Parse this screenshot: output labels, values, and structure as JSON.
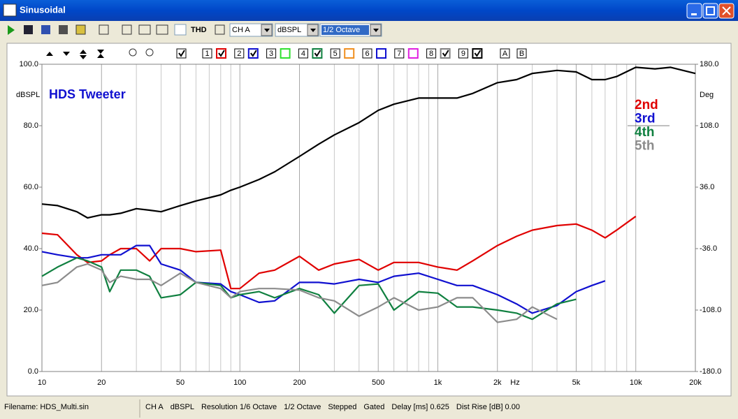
{
  "window": {
    "title": "Sinusoidal"
  },
  "toolbar": {
    "thd": "THD",
    "channel": "CH A",
    "unit": "dBSPL",
    "smoothing": "1/2 Octave",
    "series_toggles": [
      "1",
      "2",
      "3",
      "4",
      "5",
      "6",
      "7",
      "8",
      "9"
    ],
    "markers": [
      "A",
      "B"
    ]
  },
  "chart_data": {
    "type": "line",
    "x_scale": "log",
    "annotation": "HDS Tweeter",
    "ylabel": "dBSPL",
    "y2label": "Deg",
    "xunit": "Hz",
    "x": [
      10,
      12,
      15,
      17,
      20,
      22,
      25,
      30,
      35,
      40,
      50,
      60,
      80,
      90,
      100,
      125,
      150,
      200,
      250,
      300,
      400,
      500,
      600,
      800,
      1000,
      1250,
      1500,
      2000,
      2500,
      3000,
      4000,
      5000,
      6000,
      7000,
      8000,
      10000,
      12500,
      15000,
      20000
    ],
    "series": [
      {
        "name": null,
        "color": "#000000",
        "values": [
          54.5,
          54,
          52,
          50,
          51,
          51,
          51.5,
          53,
          52.5,
          52,
          54,
          55.5,
          57.5,
          59,
          60,
          62.5,
          65,
          70,
          74,
          77,
          81,
          85,
          87,
          89,
          89,
          89,
          90.5,
          94,
          95,
          97,
          98,
          97.5,
          95,
          95,
          96,
          99,
          98.5,
          99,
          97
        ]
      },
      {
        "name": "2nd",
        "color": "#e00000",
        "values": [
          45,
          44.5,
          38,
          35.5,
          36,
          38,
          40,
          40,
          36,
          40,
          40,
          39,
          39.5,
          27,
          27,
          32,
          33,
          37.5,
          33,
          35,
          36.5,
          33,
          35.5,
          35.5,
          34,
          33,
          36,
          41,
          44,
          46,
          47.5,
          48,
          46,
          43.5,
          46,
          50.5,
          null,
          null,
          null
        ]
      },
      {
        "name": "3rd",
        "color": "#1010d0",
        "values": [
          39,
          38,
          37,
          37,
          38,
          38,
          38,
          41,
          41,
          35,
          33,
          29,
          28.5,
          26,
          25,
          22.5,
          23,
          29,
          29,
          28.5,
          30,
          29,
          31,
          32,
          30,
          28,
          28,
          25,
          22,
          19,
          21.5,
          26,
          28,
          29.5,
          null,
          null,
          null,
          null,
          null
        ]
      },
      {
        "name": "4th",
        "color": "#108040",
        "values": [
          31,
          34,
          37,
          36,
          34,
          26,
          33,
          33,
          31,
          24,
          25,
          29,
          28,
          24,
          25,
          26,
          24,
          27,
          25,
          19,
          28,
          28.5,
          20,
          26,
          25.5,
          21,
          21,
          20,
          19,
          17,
          22,
          23.5,
          null,
          null,
          null,
          null,
          null,
          null,
          null
        ]
      },
      {
        "name": "5th",
        "color": "#8c8c8c",
        "values": [
          28,
          29,
          34,
          35,
          33,
          29,
          31,
          30,
          30,
          28,
          32,
          29,
          27,
          24,
          26,
          27,
          27,
          26.5,
          24,
          23,
          18,
          21,
          24,
          20,
          21,
          24,
          24,
          16,
          17,
          21,
          17,
          null,
          null,
          null,
          null,
          null,
          null,
          null,
          null
        ]
      }
    ],
    "xlim": [
      10,
      20000
    ],
    "xticks": [
      10,
      20,
      50,
      100,
      200,
      500,
      {
        "value": 1000,
        "label": "1k"
      },
      {
        "value": 2000,
        "label": "2k"
      },
      {
        "value": 5000,
        "label": "5k"
      },
      {
        "value": 10000,
        "label": "10k"
      },
      {
        "value": 20000,
        "label": "20k"
      }
    ],
    "x_minor_ticks": [
      30,
      40,
      60,
      70,
      80,
      90,
      300,
      400,
      600,
      700,
      800,
      900,
      3000,
      4000,
      6000,
      7000,
      8000,
      9000
    ],
    "ylim": [
      0,
      100
    ],
    "yticks": [
      {
        "value": 0,
        "label": "0.0"
      },
      {
        "value": 20,
        "label": "20.0"
      },
      {
        "value": 40,
        "label": "40.0"
      },
      {
        "value": 60,
        "label": "60.0"
      },
      {
        "value": 80,
        "label": "80.0"
      },
      {
        "value": 100,
        "label": "100.0"
      }
    ],
    "y2lim": [
      -180,
      180
    ],
    "y2ticks": [
      {
        "value": -180,
        "label": "-180.0"
      },
      {
        "value": -108,
        "label": "-108.0"
      },
      {
        "value": -36,
        "label": "-36.0"
      },
      {
        "value": 36,
        "label": "36.0"
      },
      {
        "value": 108,
        "label": "108.0"
      },
      {
        "value": 180,
        "label": "180.0"
      }
    ],
    "grid": true
  },
  "status_bar": {
    "filename": "Filename: HDS_Multi.sin",
    "items": [
      "CH A",
      "dBSPL",
      "Resolution 1/6 Octave",
      "1/2 Octave",
      "Stepped",
      "Gated",
      "Delay [ms] 0.625",
      "Dist Rise [dB] 0.00"
    ]
  }
}
